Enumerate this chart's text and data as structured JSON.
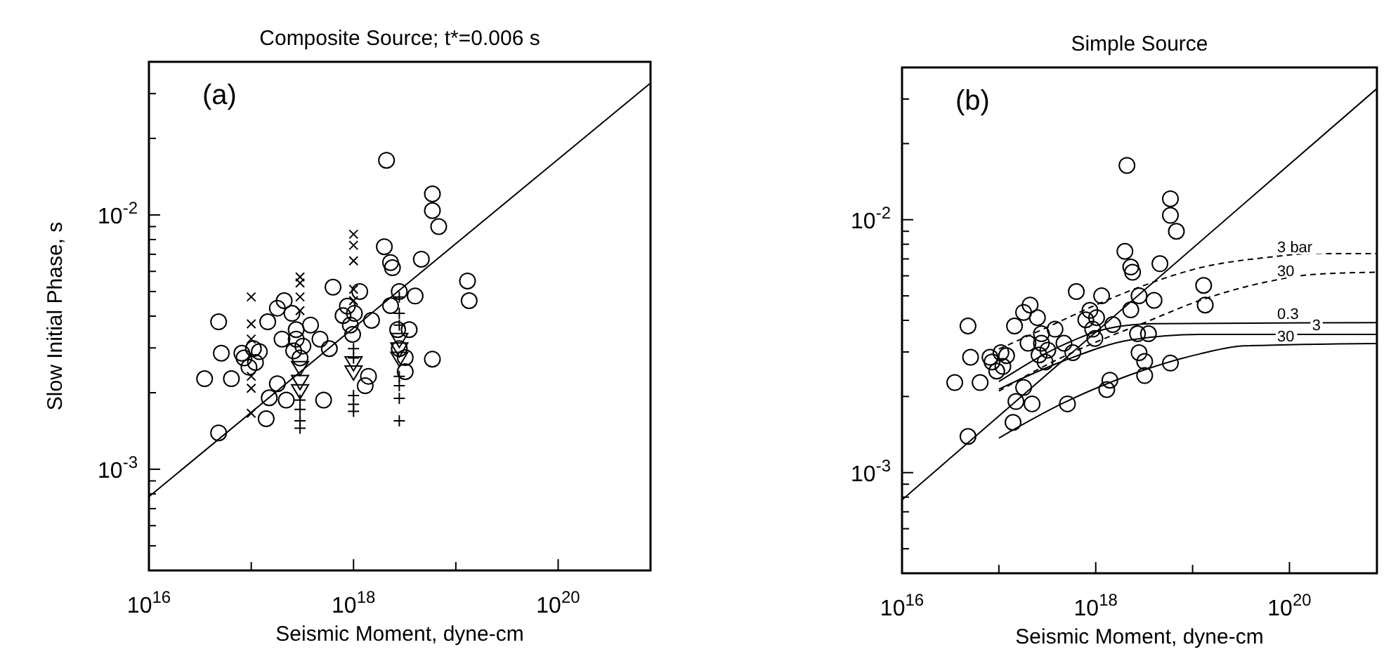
{
  "chart_data": [
    {
      "type": "scatter",
      "title": "Composite Source; t*=0.006 s",
      "xlabel": "Seismic Moment, dyne-cm",
      "ylabel": "Slow Initial Phase, s",
      "annotations": [
        "(a)"
      ],
      "log": "xy",
      "xlim": [
        1e+16,
        8e+20
      ],
      "ylim": [
        0.0004,
        0.04
      ],
      "xticks": [
        {
          "value": 1e+16,
          "label": "10$^{16}$"
        },
        {
          "value": 1e+17,
          "label": null
        },
        {
          "value": 1e+18,
          "label": "10$^{18}$"
        },
        {
          "value": 1e+19,
          "label": null
        },
        {
          "value": 1e+20,
          "label": "10$^{20}$"
        }
      ],
      "yticks": [
        {
          "value": 0.0005,
          "label": null
        },
        {
          "value": 0.0006,
          "label": null
        },
        {
          "value": 0.0007,
          "label": null
        },
        {
          "value": 0.0008,
          "label": null
        },
        {
          "value": 0.0009,
          "label": null
        },
        {
          "value": 0.001,
          "label": "10$^{-3}$"
        },
        {
          "value": 0.002,
          "label": null
        },
        {
          "value": 0.003,
          "label": null
        },
        {
          "value": 0.004,
          "label": null
        },
        {
          "value": 0.005,
          "label": null
        },
        {
          "value": 0.006,
          "label": null
        },
        {
          "value": 0.007,
          "label": null
        },
        {
          "value": 0.008,
          "label": null
        },
        {
          "value": 0.009,
          "label": null
        },
        {
          "value": 0.01,
          "label": "10$^{-2}$"
        },
        {
          "value": 0.02,
          "label": null
        },
        {
          "value": 0.03,
          "label": null
        }
      ],
      "series": [
        {
          "marker": "circle",
          "color": "#000000",
          "x": [
            2.1e+18,
            5.9e+18,
            5.9e+18,
            6.8e+18,
            2e+18,
            2.3e+18,
            2.4e+18,
            4.6e+18,
            1.3e+19,
            1.35e+19,
            6.3e+17,
            1.15e+18,
            4e+18,
            2.8e+18,
            2.3e+18,
            4.8e+16,
            5.1e+16,
            3.5e+16,
            6.4e+16,
            4.8e+16,
            1.4e+17,
            1.5e+17,
            1.45e+17,
            1.8e+17,
            2.1e+17,
            2.5e+17,
            2e+17,
            1.8e+17,
            2.2e+17,
            3.8e+17,
            5.1e+17,
            4.7e+17,
            5.8e+17,
            1.5e+18,
            1.4e+18,
            1.3e+18,
            3.2e+18,
            3.2e+18,
            3.5e+18,
            5.9e+18,
            1.05e+17,
            1.2e+17,
            8.5e+16,
            1.1e+17,
            9.5e+16,
            8.1e+16,
            2.75e+17,
            3.2e+17,
            2.6e+17,
            3e+17,
            2.75e+17,
            8.7e+17,
            1.02e+18,
            7.9e+17,
            9.3e+17,
            9.8e+17,
            2.7e+18,
            2.8e+18
          ],
          "values": [
            0.0164,
            0.0121,
            0.0104,
            0.009,
            0.0075,
            0.0065,
            0.0062,
            0.0067,
            0.0055,
            0.0046,
            0.0052,
            0.005,
            0.0048,
            0.005,
            0.0044,
            0.0038,
            0.00286,
            0.00227,
            0.00227,
            0.00139,
            0.00158,
            0.00191,
            0.0038,
            0.0043,
            0.0046,
            0.0041,
            0.00325,
            0.00217,
            0.00187,
            0.00369,
            0.00187,
            0.00325,
            0.00298,
            0.00385,
            0.00232,
            0.00213,
            0.00242,
            0.00275,
            0.00354,
            0.00271,
            0.00298,
            0.0029,
            0.00274,
            0.00263,
            0.00252,
            0.00286,
            0.00325,
            0.00305,
            0.00292,
            0.00274,
            0.00354,
            0.00438,
            0.0041,
            0.00402,
            0.00369,
            0.00339,
            0.00354,
            0.00298
          ]
        },
        {
          "marker": "x",
          "color": "#000000",
          "x": [
            1e+17,
            1e+17,
            1e+17,
            1e+17,
            1e+17,
            1e+17,
            3e+17,
            3e+17,
            3e+17,
            3e+17,
            1e+18,
            1e+18,
            1e+18,
            1e+18,
            1e+18
          ],
          "values": [
            0.00476,
            0.00373,
            0.00325,
            0.00232,
            0.00208,
            0.00166,
            0.0057,
            0.0054,
            0.00476,
            0.0042,
            0.0084,
            0.0076,
            0.0066,
            0.0051,
            0.0046
          ]
        },
        {
          "marker": "cross",
          "color": "#000000",
          "x": [
            3e+17,
            3e+17,
            3e+17,
            3e+17,
            1e+18,
            1e+18,
            1e+18,
            1e+18,
            1e+18,
            2.8e+18,
            2.8e+18,
            2.8e+18,
            2.8e+18,
            2.8e+18,
            2.8e+18,
            2.8e+18
          ],
          "values": [
            0.00172,
            0.00155,
            0.00145,
            0.00187,
            0.00195,
            0.0018,
            0.00169,
            0.00298,
            0.00274,
            0.00476,
            0.0041,
            0.00369,
            0.00232,
            0.00213,
            0.0019,
            0.00155
          ]
        },
        {
          "marker": "triangle",
          "color": "#000000",
          "x": [
            3e+17,
            3e+17,
            3e+17,
            1e+18,
            1e+18,
            2.8e+18,
            2.8e+18,
            2.8e+18
          ],
          "values": [
            0.00222,
            0.00204,
            0.00252,
            0.00263,
            0.00242,
            0.00325,
            0.00298,
            0.00274
          ]
        },
        {
          "type": "line",
          "line_style": "solid",
          "color": "#000000",
          "x": [
            1e+16,
            8e+20
          ],
          "values": [
            0.00078,
            0.033
          ]
        }
      ]
    },
    {
      "type": "scatter",
      "title": "Simple Source",
      "xlabel": "Seismic Moment, dyne-cm",
      "annotations": [
        "(b)"
      ],
      "log": "xy",
      "xlim": [
        1e+16,
        8e+20
      ],
      "ylim": [
        0.0004,
        0.04
      ],
      "xticks": [
        {
          "value": 1e+16,
          "label": "10$^{16}$"
        },
        {
          "value": 1e+17,
          "label": null
        },
        {
          "value": 1e+18,
          "label": "10$^{18}$"
        },
        {
          "value": 1e+19,
          "label": null
        },
        {
          "value": 1e+20,
          "label": "10$^{20}$"
        }
      ],
      "yticks": [
        {
          "value": 0.0005,
          "label": null
        },
        {
          "value": 0.0006,
          "label": null
        },
        {
          "value": 0.0007,
          "label": null
        },
        {
          "value": 0.0008,
          "label": null
        },
        {
          "value": 0.0009,
          "label": null
        },
        {
          "value": 0.001,
          "label": "10$^{-3}$"
        },
        {
          "value": 0.002,
          "label": null
        },
        {
          "value": 0.003,
          "label": null
        },
        {
          "value": 0.004,
          "label": null
        },
        {
          "value": 0.005,
          "label": null
        },
        {
          "value": 0.006,
          "label": null
        },
        {
          "value": 0.007,
          "label": null
        },
        {
          "value": 0.008,
          "label": null
        },
        {
          "value": 0.009,
          "label": null
        },
        {
          "value": 0.01,
          "label": "10$^{-2}$"
        },
        {
          "value": 0.02,
          "label": null
        },
        {
          "value": 0.03,
          "label": null
        }
      ],
      "series": [
        {
          "marker": "circle",
          "color": "#000000",
          "x": [
            2.1e+18,
            5.9e+18,
            5.9e+18,
            6.8e+18,
            2e+18,
            2.3e+18,
            2.4e+18,
            4.6e+18,
            1.3e+19,
            1.35e+19,
            6.3e+17,
            1.15e+18,
            4e+18,
            2.8e+18,
            2.3e+18,
            4.8e+16,
            5.1e+16,
            3.5e+16,
            6.4e+16,
            4.8e+16,
            1.4e+17,
            1.5e+17,
            1.45e+17,
            1.8e+17,
            2.1e+17,
            2.5e+17,
            2e+17,
            1.8e+17,
            2.2e+17,
            3.8e+17,
            5.1e+17,
            4.7e+17,
            5.8e+17,
            1.5e+18,
            1.4e+18,
            1.3e+18,
            3.2e+18,
            3.2e+18,
            3.5e+18,
            5.9e+18,
            1.05e+17,
            1.2e+17,
            8.5e+16,
            1.1e+17,
            9.5e+16,
            8.1e+16,
            2.75e+17,
            3.2e+17,
            2.6e+17,
            3e+17,
            2.75e+17,
            8.7e+17,
            1.02e+18,
            7.9e+17,
            9.3e+17,
            9.8e+17,
            2.7e+18,
            2.8e+18
          ],
          "values": [
            0.0164,
            0.0121,
            0.0104,
            0.009,
            0.0075,
            0.0065,
            0.0062,
            0.0067,
            0.0055,
            0.0046,
            0.0052,
            0.005,
            0.0048,
            0.005,
            0.0044,
            0.0038,
            0.00286,
            0.00227,
            0.00227,
            0.00139,
            0.00158,
            0.00191,
            0.0038,
            0.0043,
            0.0046,
            0.0041,
            0.00325,
            0.00217,
            0.00187,
            0.00369,
            0.00187,
            0.00325,
            0.00298,
            0.00385,
            0.00232,
            0.00213,
            0.00242,
            0.00275,
            0.00354,
            0.00271,
            0.00298,
            0.0029,
            0.00274,
            0.00263,
            0.00252,
            0.00286,
            0.00325,
            0.00305,
            0.00292,
            0.00274,
            0.00354,
            0.00438,
            0.0041,
            0.00402,
            0.00369,
            0.00339,
            0.00354,
            0.00298
          ]
        },
        {
          "type": "line",
          "line_style": "solid",
          "color": "#000000",
          "x": [
            1e+16,
            8e+20
          ],
          "values": [
            0.00078,
            0.033
          ]
        },
        {
          "type": "line",
          "name": "3 bar",
          "line_style": "dashed",
          "color": "#000000",
          "x": [
            1e+17,
            3.8e+17,
            1e+18,
            3e+18,
            1.2e+19,
            6e+19,
            1.7e+20,
            8e+20
          ],
          "values": [
            0.00308,
            0.00388,
            0.0046,
            0.00546,
            0.00646,
            0.0071,
            0.00734,
            0.00734
          ]
        },
        {
          "type": "line",
          "name": "30",
          "line_style": "dashed",
          "color": "#000000",
          "x": [
            1e+17,
            3.8e+17,
            1e+18,
            3e+18,
            1.2e+19,
            6e+19,
            1.7e+20,
            8e+20
          ],
          "values": [
            0.0021,
            0.00277,
            0.00328,
            0.00388,
            0.0048,
            0.00569,
            0.00607,
            0.0062
          ]
        },
        {
          "type": "line",
          "name": "0.3",
          "line_style": "solid",
          "color": "#000000",
          "x": [
            1e+17,
            4.7e+17,
            1.4e+18,
            4e+18,
            8e+20
          ],
          "values": [
            0.00229,
            0.00321,
            0.00373,
            0.00388,
            0.00392
          ]
        },
        {
          "type": "line",
          "name": "3",
          "line_style": "solid",
          "color": "#000000",
          "x": [
            1e+17,
            4.7e+17,
            2.3e+18,
            1.2e+19,
            8e+20
          ],
          "values": [
            0.00214,
            0.00277,
            0.00335,
            0.00352,
            0.00352
          ]
        },
        {
          "type": "line",
          "name": "30",
          "line_style": "solid",
          "color": "#000000",
          "x": [
            1e+17,
            4.7e+17,
            2.3e+18,
            1.2e+19,
            3.4e+19,
            8e+20
          ],
          "values": [
            0.00137,
            0.00189,
            0.00244,
            0.00295,
            0.00317,
            0.00324
          ]
        }
      ]
    }
  ]
}
